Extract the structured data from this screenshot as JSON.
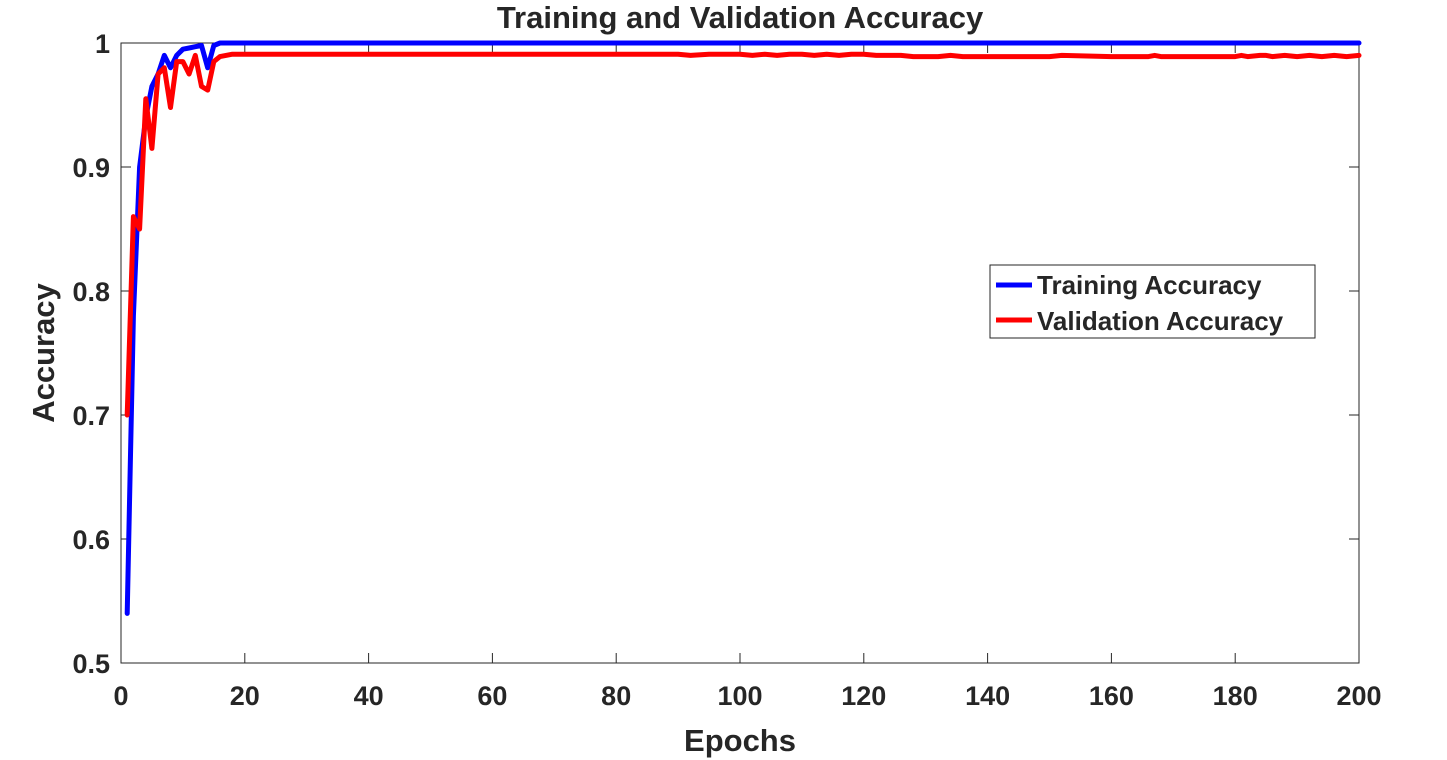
{
  "chart_data": {
    "type": "line",
    "title": "Training and Validation Accuracy",
    "xlabel": "Epochs",
    "ylabel": "Accuracy",
    "xlim": [
      0,
      200
    ],
    "ylim": [
      0.5,
      1
    ],
    "xticks": [
      0,
      20,
      40,
      60,
      80,
      100,
      120,
      140,
      160,
      180,
      200
    ],
    "yticks": [
      0.5,
      0.6,
      0.7,
      0.8,
      0.9,
      1
    ],
    "ytick_labels": [
      "0.5",
      "0.6",
      "0.7",
      "0.8",
      "0.9",
      "1"
    ],
    "grid": false,
    "legend_position": "right, slightly above center",
    "series": [
      {
        "name": "Training Accuracy",
        "color": "#0000ff",
        "points": [
          [
            1,
            0.54
          ],
          [
            2,
            0.78
          ],
          [
            3,
            0.9
          ],
          [
            4,
            0.94
          ],
          [
            5,
            0.965
          ],
          [
            6,
            0.975
          ],
          [
            7,
            0.99
          ],
          [
            8,
            0.98
          ],
          [
            9,
            0.99
          ],
          [
            10,
            0.995
          ],
          [
            11,
            0.996
          ],
          [
            12,
            0.997
          ],
          [
            13,
            0.998
          ],
          [
            14,
            0.98
          ],
          [
            15,
            0.998
          ],
          [
            16,
            1.0
          ],
          [
            200,
            1.0
          ]
        ]
      },
      {
        "name": "Validation Accuracy",
        "color": "#ff0000",
        "points": [
          [
            1,
            0.7
          ],
          [
            2,
            0.86
          ],
          [
            3,
            0.85
          ],
          [
            4,
            0.955
          ],
          [
            5,
            0.915
          ],
          [
            6,
            0.975
          ],
          [
            7,
            0.98
          ],
          [
            8,
            0.948
          ],
          [
            9,
            0.985
          ],
          [
            10,
            0.985
          ],
          [
            11,
            0.975
          ],
          [
            12,
            0.99
          ],
          [
            13,
            0.965
          ],
          [
            14,
            0.962
          ],
          [
            15,
            0.985
          ],
          [
            16,
            0.989
          ],
          [
            18,
            0.991
          ],
          [
            40,
            0.991
          ],
          [
            60,
            0.991
          ],
          [
            90,
            0.991
          ],
          [
            92,
            0.99
          ],
          [
            95,
            0.991
          ],
          [
            100,
            0.991
          ],
          [
            102,
            0.99
          ],
          [
            104,
            0.991
          ],
          [
            106,
            0.99
          ],
          [
            108,
            0.991
          ],
          [
            110,
            0.991
          ],
          [
            112,
            0.99
          ],
          [
            114,
            0.991
          ],
          [
            116,
            0.99
          ],
          [
            118,
            0.991
          ],
          [
            120,
            0.991
          ],
          [
            122,
            0.99
          ],
          [
            126,
            0.99
          ],
          [
            128,
            0.989
          ],
          [
            132,
            0.989
          ],
          [
            134,
            0.99
          ],
          [
            136,
            0.989
          ],
          [
            150,
            0.989
          ],
          [
            152,
            0.99
          ],
          [
            160,
            0.989
          ],
          [
            166,
            0.989
          ],
          [
            167,
            0.99
          ],
          [
            168,
            0.989
          ],
          [
            180,
            0.989
          ],
          [
            181,
            0.99
          ],
          [
            182,
            0.989
          ],
          [
            184,
            0.99
          ],
          [
            185,
            0.99
          ],
          [
            186,
            0.989
          ],
          [
            188,
            0.99
          ],
          [
            190,
            0.989
          ],
          [
            192,
            0.99
          ],
          [
            194,
            0.989
          ],
          [
            196,
            0.99
          ],
          [
            198,
            0.989
          ],
          [
            200,
            0.99
          ]
        ]
      }
    ]
  }
}
